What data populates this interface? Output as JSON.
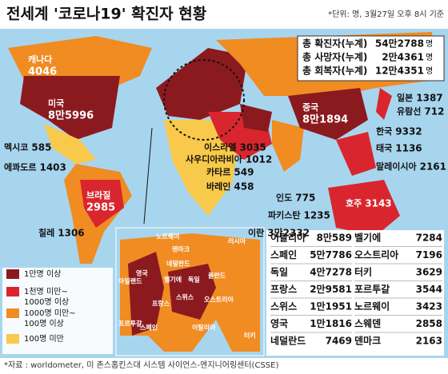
{
  "header": {
    "title": "전세계 '코로나19' 확진자 현황",
    "note": "*단위: 명, 3월27일 오후 8시 기준"
  },
  "totals": [
    {
      "label": "총 확진자(누계)",
      "value": "54만2788"
    },
    {
      "label": "총 사망자(누계)",
      "value": "2만4361"
    },
    {
      "label": "총 회복자(누계)",
      "value": "12만4351"
    }
  ],
  "unit": "명",
  "map_labels": [
    {
      "name": "캐나다",
      "value": "4046"
    },
    {
      "name": "미국",
      "value": "8만5996"
    },
    {
      "name": "멕시코",
      "value": "585"
    },
    {
      "name": "에콰도르",
      "value": "1403"
    },
    {
      "name": "브라질",
      "value": "2985"
    },
    {
      "name": "칠레",
      "value": "1306"
    },
    {
      "name": "이스라엘",
      "value": "3035"
    },
    {
      "name": "사우디아라비아",
      "value": "1012"
    },
    {
      "name": "카타르",
      "value": "549"
    },
    {
      "name": "바레인",
      "value": "458"
    },
    {
      "name": "인도",
      "value": "775"
    },
    {
      "name": "파키스탄",
      "value": "1235"
    },
    {
      "name": "이란",
      "value": "3만2332"
    },
    {
      "name": "중국",
      "value": "8만1894"
    },
    {
      "name": "일본",
      "value": "1387"
    },
    {
      "name": "유람선",
      "value": "712"
    },
    {
      "name": "한국",
      "value": "9332"
    },
    {
      "name": "태국",
      "value": "1136"
    },
    {
      "name": "말레이시아",
      "value": "2161"
    },
    {
      "name": "호주",
      "value": "3143"
    }
  ],
  "europe_map_labels": [
    "노르웨이",
    "러시아",
    "덴마크",
    "영국",
    "네덜란드",
    "벨기에",
    "독일",
    "아일랜드",
    "폴란드",
    "프랑스",
    "오스트리아",
    "스위스",
    "포르투갈",
    "스페인",
    "이탈리아",
    "터키"
  ],
  "europe_table": [
    {
      "name": "이탈리아",
      "value": "8만589"
    },
    {
      "name": "스페인",
      "value": "5만7786"
    },
    {
      "name": "독일",
      "value": "4만7278"
    },
    {
      "name": "프랑스",
      "value": "2만9581"
    },
    {
      "name": "스위스",
      "value": "1만1951"
    },
    {
      "name": "영국",
      "value": "1만1816"
    },
    {
      "name": "네덜란드",
      "value": "7469"
    },
    {
      "name": "벨기에",
      "value": "7284"
    },
    {
      "name": "오스트리아",
      "value": "7196"
    },
    {
      "name": "터키",
      "value": "3629"
    },
    {
      "name": "포르투갈",
      "value": "3544"
    },
    {
      "name": "노르웨이",
      "value": "3423"
    },
    {
      "name": "스웨덴",
      "value": "2858"
    },
    {
      "name": "덴마크",
      "value": "2163"
    }
  ],
  "legend": [
    {
      "label": [
        "1만명 이상"
      ],
      "color": "#8b1a1f"
    },
    {
      "label": [
        "1천명 미만~",
        "1000명 이상"
      ],
      "color": "#d9262e"
    },
    {
      "label": [
        "1000명 미만~",
        "100명 이상"
      ],
      "color": "#f08c22"
    },
    {
      "label": [
        "100명 미만"
      ],
      "color": "#f8c94a"
    }
  ],
  "source": "*자료 : worldometer, 미 존스홉킨스대 시스템 사이언스-엔지니어링센터(CSSE)"
}
